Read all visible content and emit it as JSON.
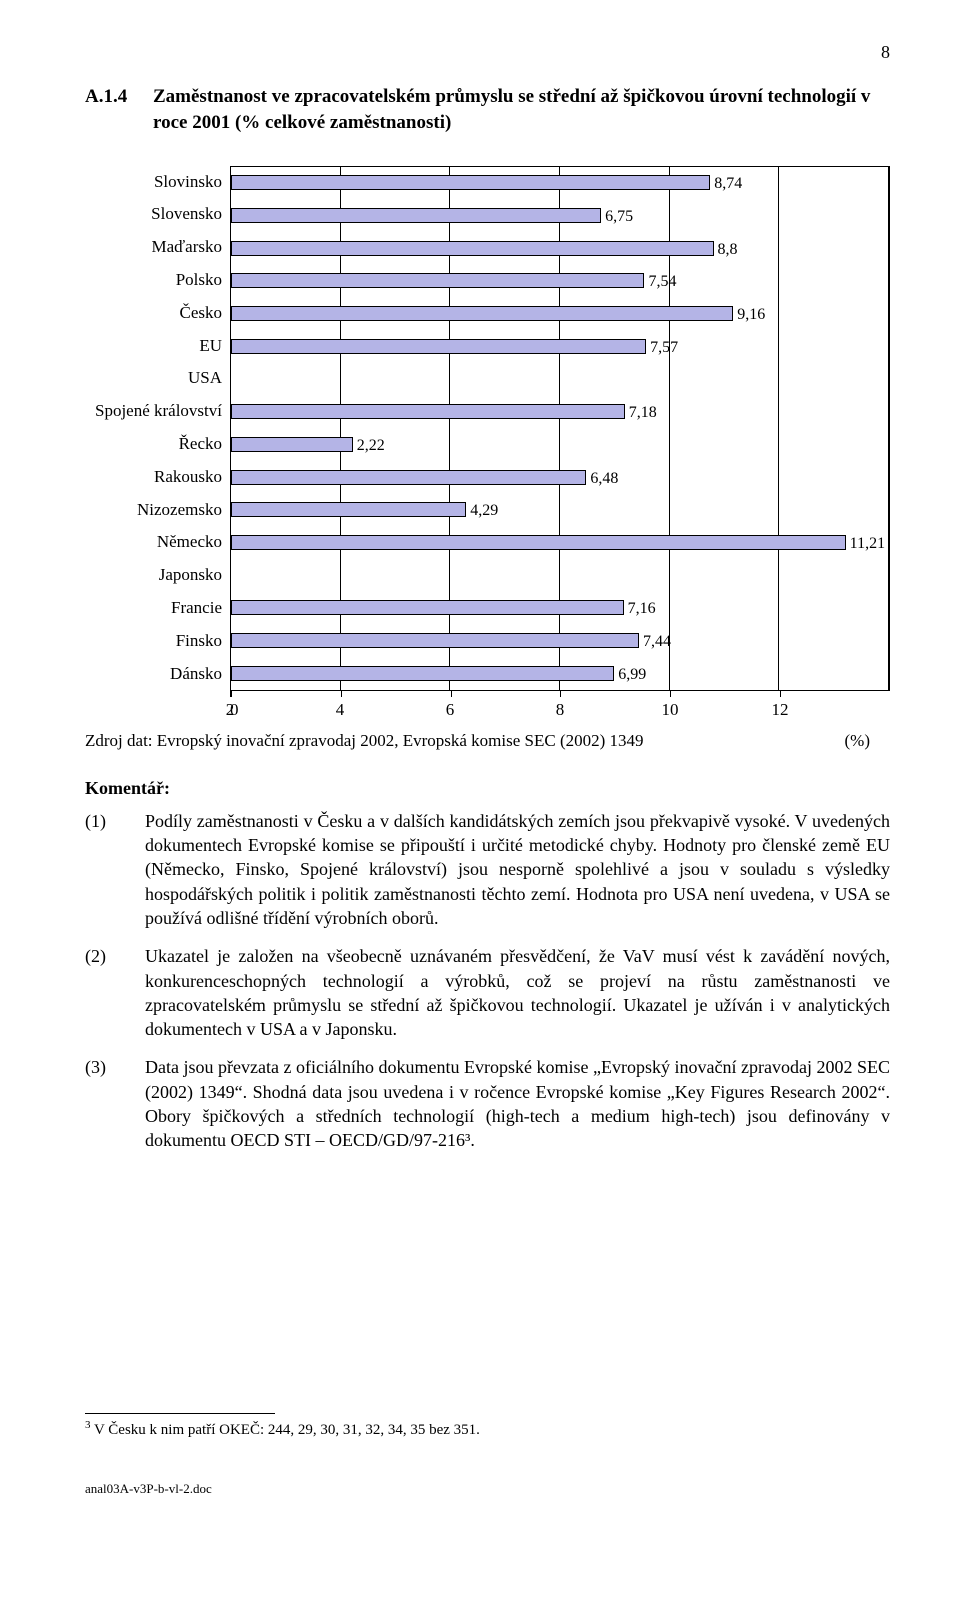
{
  "page_number": "8",
  "heading_number": "A.1.4",
  "heading_text": "Zaměstnanost ve zpracovatelském průmyslu se střední až špičkovou úrovní technologií v roce 2001 (% celkové zaměstnanosti)",
  "chart": {
    "type": "bar-horizontal",
    "bar_fill": "#b4b4e6",
    "bar_stroke": "#000000",
    "xlim": [
      0,
      12
    ],
    "xtick_positions": [
      0,
      2,
      4,
      6,
      8,
      10,
      12
    ],
    "xtick_labels": [
      "0",
      "2",
      "4",
      "6",
      "8",
      "10",
      "12"
    ],
    "xunit_label": "(%)",
    "categories": [
      {
        "label": "Slovinsko",
        "value": 8.74,
        "value_label": "8,74"
      },
      {
        "label": "Slovensko",
        "value": 6.75,
        "value_label": "6,75"
      },
      {
        "label": "Maďarsko",
        "value": 8.8,
        "value_label": "8,8"
      },
      {
        "label": "Polsko",
        "value": 7.54,
        "value_label": "7,54"
      },
      {
        "label": "Česko",
        "value": 9.16,
        "value_label": "9,16"
      },
      {
        "label": "EU",
        "value": 7.57,
        "value_label": "7,57"
      },
      {
        "label": "USA",
        "value": null,
        "value_label": ""
      },
      {
        "label": "Spojené království",
        "value": 7.18,
        "value_label": "7,18"
      },
      {
        "label": "Řecko",
        "value": 2.22,
        "value_label": "2,22"
      },
      {
        "label": "Rakousko",
        "value": 6.48,
        "value_label": "6,48"
      },
      {
        "label": "Nizozemsko",
        "value": 4.29,
        "value_label": "4,29"
      },
      {
        "label": "Německo",
        "value": 11.21,
        "value_label": "11,21"
      },
      {
        "label": "Japonsko",
        "value": null,
        "value_label": ""
      },
      {
        "label": "Francie",
        "value": 7.16,
        "value_label": "7,16"
      },
      {
        "label": "Finsko",
        "value": 7.44,
        "value_label": "7,44"
      },
      {
        "label": "Dánsko",
        "value": 6.99,
        "value_label": "6,99"
      }
    ]
  },
  "source_line": "Zdroj dat: Evropský inovační zpravodaj 2002, Evropská komise SEC (2002) 1349",
  "commentary_heading": "Komentář:",
  "commentary": [
    {
      "n": "(1)",
      "text": "Podíly zaměstnanosti v Česku a v dalších kandidátských zemích jsou překvapivě vysoké. V uvedených dokumentech Evropské komise se připouští i určité metodické chyby. Hodnoty pro členské země EU (Německo, Finsko, Spojené království) jsou nesporně spolehlivé a jsou v souladu s výsledky hospodářských politik i politik zaměstnanosti těchto zemí. Hodnota pro USA není uvedena, v USA se používá odlišné třídění výrobních oborů."
    },
    {
      "n": "(2)",
      "text": "Ukazatel je založen na všeobecně uznávaném přesvědčení, že VaV musí vést k zavádění nových, konkurenceschopných technologií a výrobků, což se projeví na růstu zaměstnanosti ve zpracovatelském průmyslu se střední až špičkovou technologií. Ukazatel je užíván i v analytických dokumentech v USA a v Japonsku."
    },
    {
      "n": "(3)",
      "text": "Data jsou převzata z oficiálního dokumentu Evropské komise „Evropský inovační zpravodaj 2002 SEC (2002) 1349“. Shodná data jsou uvedena i v ročence Evropské komise „Key Figures Research 2002“. Obory špičkových a středních technologií (high-tech a medium high-tech) jsou definovány v dokumentu OECD STI – OECD/GD/97-216³."
    }
  ],
  "footnote_marker": "3",
  "footnote_text": " V Česku k nim patří OKEČ: 244, 29, 30, 31, 32, 34, 35 bez 351.",
  "footer_text": "anal03A-v3P-b-vl-2.doc"
}
